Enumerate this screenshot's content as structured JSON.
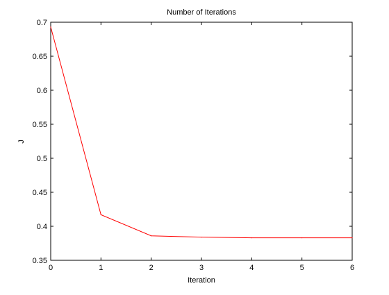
{
  "chart_data": {
    "type": "line",
    "title": "Number of Iterations",
    "xlabel": "Iteration",
    "ylabel": "J",
    "xlim": [
      0,
      6
    ],
    "ylim": [
      0.35,
      0.7
    ],
    "grid": false,
    "legend": "none",
    "x_ticks": [
      "0",
      "1",
      "2",
      "3",
      "4",
      "5",
      "6"
    ],
    "y_ticks": [
      "0.35",
      "0.4",
      "0.45",
      "0.5",
      "0.55",
      "0.6",
      "0.65",
      "0.7"
    ],
    "series": [
      {
        "color": "#ff0000",
        "x": [
          0,
          1,
          2,
          3,
          4,
          5,
          6
        ],
        "values": [
          0.693,
          0.417,
          0.386,
          0.384,
          0.383,
          0.383,
          0.383
        ]
      }
    ]
  }
}
